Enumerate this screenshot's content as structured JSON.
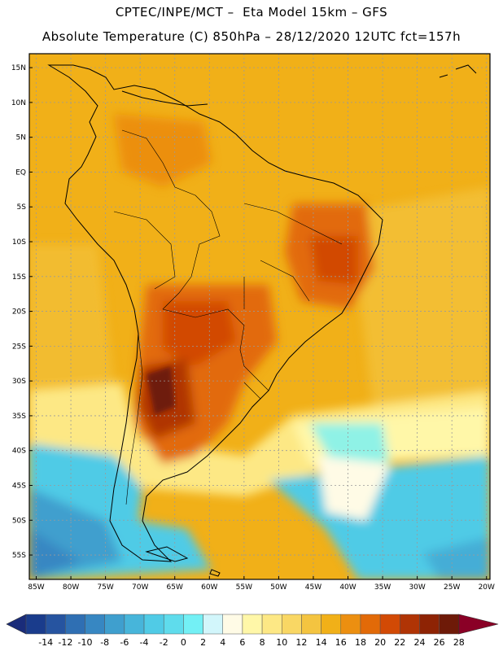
{
  "header": {
    "title_line1": "CPTEC/INPE/MCT –  Eta Model 15km – GFS",
    "title_line2": "Absolute Temperature (C) 850hPa – 28/12/2020 12UTC fct=157h"
  },
  "map": {
    "latitude_labels": [
      "15N",
      "10N",
      "5N",
      "EQ",
      "5S",
      "10S",
      "15S",
      "20S",
      "25S",
      "30S",
      "35S",
      "40S",
      "45S",
      "50S",
      "55S"
    ],
    "longitude_labels": [
      "85W",
      "80W",
      "75W",
      "70W",
      "65W",
      "60W",
      "55W",
      "50W",
      "45W",
      "40W",
      "35W",
      "30W",
      "25W",
      "20W"
    ]
  },
  "colorbar": {
    "values": [
      "-14",
      "-12",
      "-10",
      "-8",
      "-6",
      "-4",
      "-2",
      "0",
      "2",
      "4",
      "6",
      "8",
      "10",
      "12",
      "14",
      "16",
      "18",
      "20",
      "22",
      "24",
      "26",
      "28"
    ],
    "colors": [
      "#1a3c8c",
      "#2654a0",
      "#2f6fb3",
      "#3787c2",
      "#3f9fce",
      "#47b5da",
      "#50cbe6",
      "#5fdcec",
      "#73f0f5",
      "#d2f6fb",
      "#fffbe6",
      "#fff7a8",
      "#fde885",
      "#f9d764",
      "#f4c440",
      "#f1b018",
      "#ec8f10",
      "#e26a08",
      "#d24a05",
      "#b03405",
      "#8e2304",
      "#6e1a08",
      "#8a0026"
    ],
    "left_arrow_color": "#1a2c7a",
    "right_arrow_color": "#8a0026"
  },
  "colors": {
    "warm_bg": "#f1b018",
    "hot": "#e26a08",
    "very_hot": "#b03405",
    "cool_ocean": "#50cbe6",
    "cold": "#3f9fce",
    "mild": "#fde885"
  }
}
